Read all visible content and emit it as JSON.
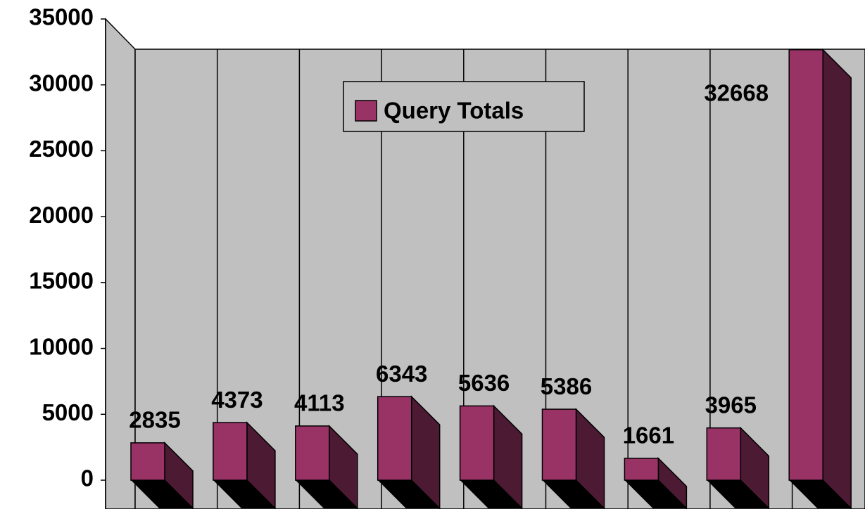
{
  "chart_data": {
    "type": "bar3d",
    "categories": [
      null,
      null,
      null,
      null,
      null,
      null,
      null,
      null,
      null
    ],
    "series": [
      {
        "name": "Query Totals",
        "color": "#993366",
        "side_color": "#4d1a33",
        "values": [
          2835,
          4373,
          4113,
          6343,
          5636,
          5386,
          1661,
          3965,
          32668
        ]
      }
    ],
    "ylim": [
      0,
      35000
    ],
    "yticks": [
      0,
      5000,
      10000,
      15000,
      20000,
      25000,
      30000,
      35000
    ],
    "wall_color": "#c0c0c0",
    "legend": "top"
  }
}
